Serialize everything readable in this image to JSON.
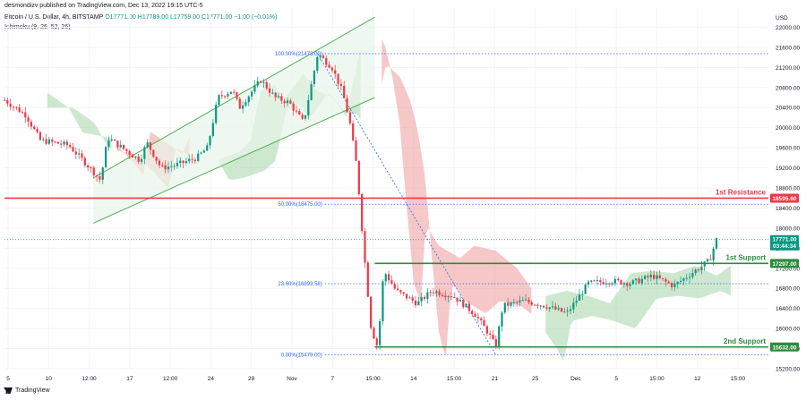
{
  "header": {
    "published": "desmondizv published on TradingView.com, Dec 13, 2022 19:15 UTC-5",
    "symbol": "Bitcoin / U.S. Dollar, 4h, BITSTAMP",
    "ohlc": "O17771.00  H17789.00  L17759.00  C17771.00  −1.00 (−0.01%)",
    "indicator": "Ichimoku (9, 26, 52, 26)"
  },
  "branding": {
    "logo_text": "TradingView"
  },
  "colors": {
    "up": "#089981",
    "down": "#f23645",
    "resistance": "#f23645",
    "support": "#2e8b3c",
    "fib": "#2962ff",
    "channel": "#4caf50",
    "cloud_bull": "#a5d6a7",
    "cloud_bear": "#ef9a9a"
  },
  "chart_data": {
    "type": "candlestick",
    "currency": "USD",
    "ylim": [
      15200,
      22400
    ],
    "y_ticks": [
      22000,
      21600,
      21200,
      20800,
      20400,
      20000,
      19600,
      19200,
      18800,
      18400,
      18000,
      17600,
      17200,
      16800,
      16400,
      16000,
      15600,
      15200
    ],
    "y_tick_labels": [
      "22000.00",
      "21600.00",
      "21200.00",
      "20800.00",
      "20400.00",
      "20000.00",
      "19600.00",
      "19200.00",
      "18800.00",
      "18400.00",
      "18000.00",
      "17600.00",
      "17200.00",
      "16800.00",
      "16400.00",
      "16000.00",
      "15600.00",
      "15200.00"
    ],
    "x_tick_labels": [
      "5",
      "10",
      "12:00",
      "17",
      "12:00",
      "24",
      "28",
      "Nov",
      "7",
      "15:00",
      "14",
      "15:00",
      "21",
      "25",
      "Dec",
      "5",
      "15:00",
      "12",
      "15:00"
    ],
    "price_path": [
      [
        0,
        20550
      ],
      [
        0.03,
        20250
      ],
      [
        0.05,
        19750
      ],
      [
        0.09,
        19650
      ],
      [
        0.12,
        19200
      ],
      [
        0.135,
        18950
      ],
      [
        0.145,
        19800
      ],
      [
        0.17,
        19550
      ],
      [
        0.19,
        19350
      ],
      [
        0.2,
        19700
      ],
      [
        0.22,
        19200
      ],
      [
        0.24,
        19250
      ],
      [
        0.27,
        19400
      ],
      [
        0.285,
        19600
      ],
      [
        0.3,
        20600
      ],
      [
        0.32,
        20750
      ],
      [
        0.33,
        20400
      ],
      [
        0.36,
        20950
      ],
      [
        0.38,
        20600
      ],
      [
        0.4,
        20500
      ],
      [
        0.42,
        20100
      ],
      [
        0.44,
        21473
      ],
      [
        0.46,
        21200
      ],
      [
        0.475,
        20700
      ],
      [
        0.485,
        20100
      ],
      [
        0.495,
        19200
      ],
      [
        0.505,
        17500
      ],
      [
        0.515,
        16000
      ],
      [
        0.525,
        15600
      ],
      [
        0.53,
        16850
      ],
      [
        0.535,
        17100
      ],
      [
        0.55,
        16750
      ],
      [
        0.58,
        16500
      ],
      [
        0.6,
        16750
      ],
      [
        0.63,
        16650
      ],
      [
        0.66,
        16300
      ],
      [
        0.68,
        15900
      ],
      [
        0.69,
        15632
      ],
      [
        0.7,
        16450
      ],
      [
        0.73,
        16550
      ],
      [
        0.76,
        16450
      ],
      [
        0.79,
        16300
      ],
      [
        0.82,
        16900
      ],
      [
        0.85,
        16950
      ],
      [
        0.88,
        16900
      ],
      [
        0.91,
        17050
      ],
      [
        0.94,
        16850
      ],
      [
        0.97,
        17150
      ],
      [
        0.99,
        17350
      ],
      [
        1.0,
        17771
      ]
    ],
    "current_price": {
      "value": 17771.0,
      "label": "17771.00",
      "countdown": "03:44:34"
    },
    "levels": [
      {
        "name": "1st Resistance",
        "value": 18595.6,
        "label": "18595.60"
      },
      {
        "name": "1st Support",
        "value": 17297.0,
        "label": "17297.00"
      },
      {
        "name": "2nd Support",
        "value": 15632.0,
        "label": "15632.00"
      }
    ],
    "fibonacci": [
      {
        "ratio_label": "100.00%(21473.00)",
        "value": 21473
      },
      {
        "ratio_label": "50.00%(18475.00)",
        "value": 18475
      },
      {
        "ratio_label": "23.60%(16893.58)",
        "value": 16893.58
      },
      {
        "ratio_label": "0.00%(15479.00)",
        "value": 15479
      }
    ]
  }
}
